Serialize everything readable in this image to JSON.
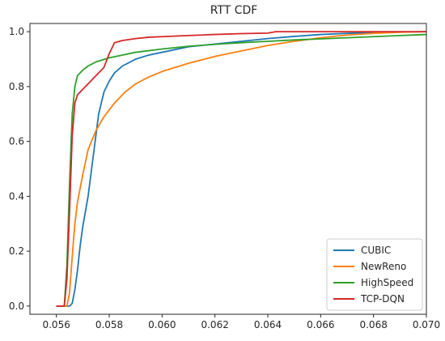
{
  "chart_data": {
    "type": "line",
    "title": "RTT CDF",
    "xlabel": "",
    "ylabel": "",
    "xlim": [
      0.055,
      0.07
    ],
    "ylim": [
      -0.03,
      1.03
    ],
    "x_ticks": [
      0.056,
      0.058,
      0.06,
      0.062,
      0.064,
      0.066,
      0.068,
      0.07
    ],
    "x_tick_labels": [
      "0.056",
      "0.058",
      "0.060",
      "0.062",
      "0.064",
      "0.066",
      "0.068",
      "0.070"
    ],
    "y_ticks": [
      0.0,
      0.2,
      0.4,
      0.6,
      0.8,
      1.0
    ],
    "y_tick_labels": [
      "0.0",
      "0.2",
      "0.4",
      "0.6",
      "0.8",
      "1.0"
    ],
    "grid": false,
    "legend_position": "lower-right",
    "series": [
      {
        "name": "CUBIC",
        "color": "#1f77b4",
        "x": [
          0.056,
          0.0565,
          0.0566,
          0.0567,
          0.0568,
          0.0569,
          0.057,
          0.0572,
          0.0574,
          0.0576,
          0.0578,
          0.058,
          0.0582,
          0.0585,
          0.059,
          0.0595,
          0.06,
          0.061,
          0.062,
          0.063,
          0.064,
          0.065,
          0.066,
          0.067,
          0.068,
          0.069,
          0.07
        ],
        "y": [
          0.0,
          0.0,
          0.01,
          0.06,
          0.13,
          0.22,
          0.29,
          0.4,
          0.55,
          0.7,
          0.78,
          0.82,
          0.85,
          0.875,
          0.9,
          0.915,
          0.925,
          0.945,
          0.955,
          0.965,
          0.975,
          0.983,
          0.99,
          0.994,
          0.997,
          0.999,
          1.0
        ]
      },
      {
        "name": "NewReno",
        "color": "#ff7f0e",
        "x": [
          0.056,
          0.0564,
          0.0565,
          0.0566,
          0.0567,
          0.0568,
          0.057,
          0.0572,
          0.0575,
          0.0578,
          0.0582,
          0.0586,
          0.059,
          0.0595,
          0.06,
          0.061,
          0.062,
          0.063,
          0.064,
          0.065,
          0.066,
          0.067,
          0.068,
          0.069,
          0.07
        ],
        "y": [
          0.0,
          0.0,
          0.05,
          0.18,
          0.3,
          0.38,
          0.48,
          0.57,
          0.64,
          0.69,
          0.74,
          0.78,
          0.81,
          0.835,
          0.855,
          0.885,
          0.91,
          0.93,
          0.95,
          0.965,
          0.978,
          0.988,
          0.994,
          0.998,
          1.0
        ]
      },
      {
        "name": "HighSpeed",
        "color": "#2ca02c",
        "x": [
          0.056,
          0.0563,
          0.0564,
          0.0565,
          0.0566,
          0.0567,
          0.0568,
          0.057,
          0.0572,
          0.0575,
          0.058,
          0.0585,
          0.059,
          0.06,
          0.061,
          0.062,
          0.063,
          0.064,
          0.065,
          0.066,
          0.067,
          0.068,
          0.069,
          0.07
        ],
        "y": [
          0.0,
          0.0,
          0.15,
          0.45,
          0.7,
          0.8,
          0.84,
          0.86,
          0.875,
          0.89,
          0.905,
          0.915,
          0.925,
          0.937,
          0.947,
          0.954,
          0.96,
          0.965,
          0.97,
          0.974,
          0.978,
          0.982,
          0.986,
          0.99
        ]
      },
      {
        "name": "TCP-DQN",
        "color": "#d62728",
        "x": [
          0.056,
          0.0563,
          0.0564,
          0.0565,
          0.0566,
          0.0567,
          0.0568,
          0.057,
          0.0572,
          0.0575,
          0.0578,
          0.058,
          0.0582,
          0.0585,
          0.059,
          0.0595,
          0.06,
          0.061,
          0.062,
          0.063,
          0.064,
          0.0643,
          0.065,
          0.066,
          0.067,
          0.068,
          0.069,
          0.07
        ],
        "y": [
          0.0,
          0.0,
          0.1,
          0.35,
          0.62,
          0.74,
          0.77,
          0.79,
          0.81,
          0.84,
          0.87,
          0.92,
          0.96,
          0.968,
          0.975,
          0.98,
          0.982,
          0.986,
          0.99,
          0.993,
          0.995,
          1.0,
          1.0,
          1.0,
          1.0,
          1.0,
          1.0,
          1.0
        ]
      }
    ]
  }
}
